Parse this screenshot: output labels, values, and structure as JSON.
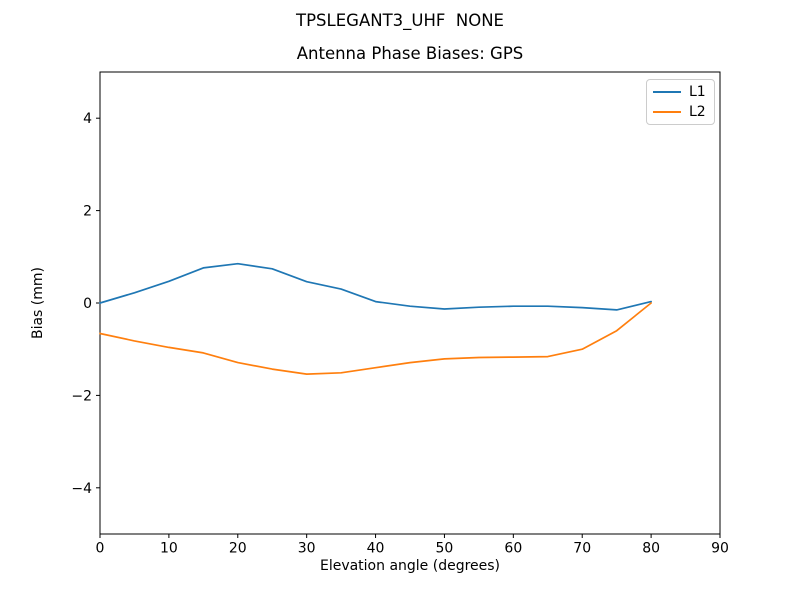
{
  "figure": {
    "suptitle": "TPSLEGANT3_UHF  NONE",
    "background_color": "#ffffff",
    "text_color": "#000000"
  },
  "chart_data": {
    "type": "line",
    "title": "Antenna Phase Biases: GPS",
    "xlabel": "Elevation angle (degrees)",
    "ylabel": "Bias (mm)",
    "xlim": [
      0,
      90
    ],
    "ylim": [
      -5,
      5
    ],
    "xticks": [
      0,
      10,
      20,
      30,
      40,
      50,
      60,
      70,
      80,
      90
    ],
    "xtick_labels": [
      "0",
      "10",
      "20",
      "30",
      "40",
      "50",
      "60",
      "70",
      "80",
      "90"
    ],
    "yticks": [
      -4,
      -2,
      0,
      2,
      4
    ],
    "ytick_labels": [
      "−4",
      "−2",
      "0",
      "2",
      "4"
    ],
    "grid": false,
    "legend_position": "upper right",
    "x": [
      0,
      5,
      10,
      15,
      20,
      25,
      30,
      35,
      40,
      45,
      50,
      55,
      60,
      65,
      70,
      75,
      80
    ],
    "series": [
      {
        "name": "L1",
        "color": "#1f77b4",
        "values": [
          0.0,
          0.22,
          0.47,
          0.76,
          0.85,
          0.74,
          0.46,
          0.3,
          0.03,
          -0.07,
          -0.13,
          -0.09,
          -0.07,
          -0.07,
          -0.1,
          -0.15,
          0.03
        ]
      },
      {
        "name": "L2",
        "color": "#ff7f0e",
        "values": [
          -0.66,
          -0.82,
          -0.96,
          -1.08,
          -1.29,
          -1.43,
          -1.54,
          -1.51,
          -1.4,
          -1.29,
          -1.21,
          -1.18,
          -1.17,
          -1.16,
          -1.0,
          -0.6,
          0.0
        ]
      }
    ]
  }
}
